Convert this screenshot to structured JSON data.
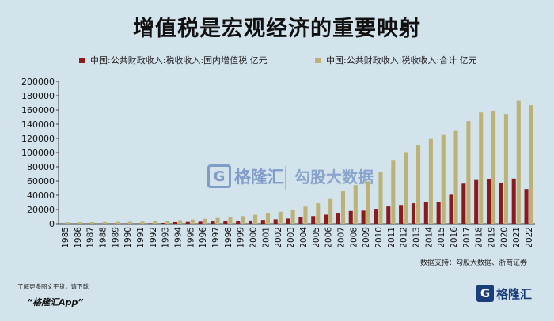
{
  "colors": {
    "background": "#d3e3ec",
    "vat": "#8b1a1a",
    "total": "#bcb277"
  },
  "chart_data": {
    "type": "bar",
    "title": "增值税是宏观经济的重要映射",
    "categories": [
      "1985",
      "1986",
      "1987",
      "1988",
      "1989",
      "1990",
      "1991",
      "1992",
      "1993",
      "1994",
      "1995",
      "1996",
      "1997",
      "1998",
      "1999",
      "2000",
      "2001",
      "2002",
      "2003",
      "2004",
      "2005",
      "2006",
      "2007",
      "2008",
      "2009",
      "2010",
      "2011",
      "2012",
      "2013",
      "2014",
      "2015",
      "2016",
      "2017",
      "2018",
      "2019",
      "2020",
      "2021",
      "2022"
    ],
    "series": [
      {
        "name": "中国:公共财政收入:税收收入:国内增值税 亿元",
        "color": "#8b1a1a",
        "values": [
          150,
          230,
          250,
          310,
          430,
          400,
          410,
          700,
          1100,
          2300,
          2600,
          3000,
          3300,
          3600,
          3900,
          4600,
          5400,
          6200,
          7300,
          9000,
          10800,
          12800,
          15500,
          18000,
          18500,
          21000,
          24300,
          26400,
          28800,
          30900,
          31100,
          40700,
          56400,
          61500,
          62300,
          56800,
          63500,
          48700
        ]
      },
      {
        "name": "中国:公共财政收入:税收收入:合计 亿元",
        "color": "#bcb277",
        "values": [
          2000,
          2100,
          2150,
          2400,
          2700,
          2800,
          3000,
          3300,
          4300,
          5100,
          6000,
          6900,
          8200,
          9300,
          10700,
          12600,
          15300,
          17000,
          20000,
          24200,
          28800,
          34800,
          45600,
          54200,
          59500,
          73200,
          89700,
          100600,
          110500,
          119200,
          124900,
          130400,
          144400,
          156400,
          158000,
          154300,
          172700,
          166600
        ]
      }
    ],
    "ylim": [
      0,
      200000
    ],
    "yticks": [
      0,
      20000,
      40000,
      60000,
      80000,
      100000,
      120000,
      140000,
      160000,
      180000,
      200000
    ],
    "grid": false,
    "legend_position": "top"
  },
  "legend": {
    "vat": "中国:公共财政收入:税收收入:国内增值税 亿元",
    "total": "中国:公共财政收入:税收收入:合计 亿元"
  },
  "source_text": "数据支持：勾股大数据、浙商证券",
  "download_text": "了解更多图文干货，请下载",
  "app_name": "“格隆汇App”",
  "brand": {
    "logo_letter": "G",
    "name": "格隆汇"
  },
  "watermark": {
    "left_letter": "G",
    "left_text": "格隆汇",
    "right_text": "勾股大数据"
  }
}
